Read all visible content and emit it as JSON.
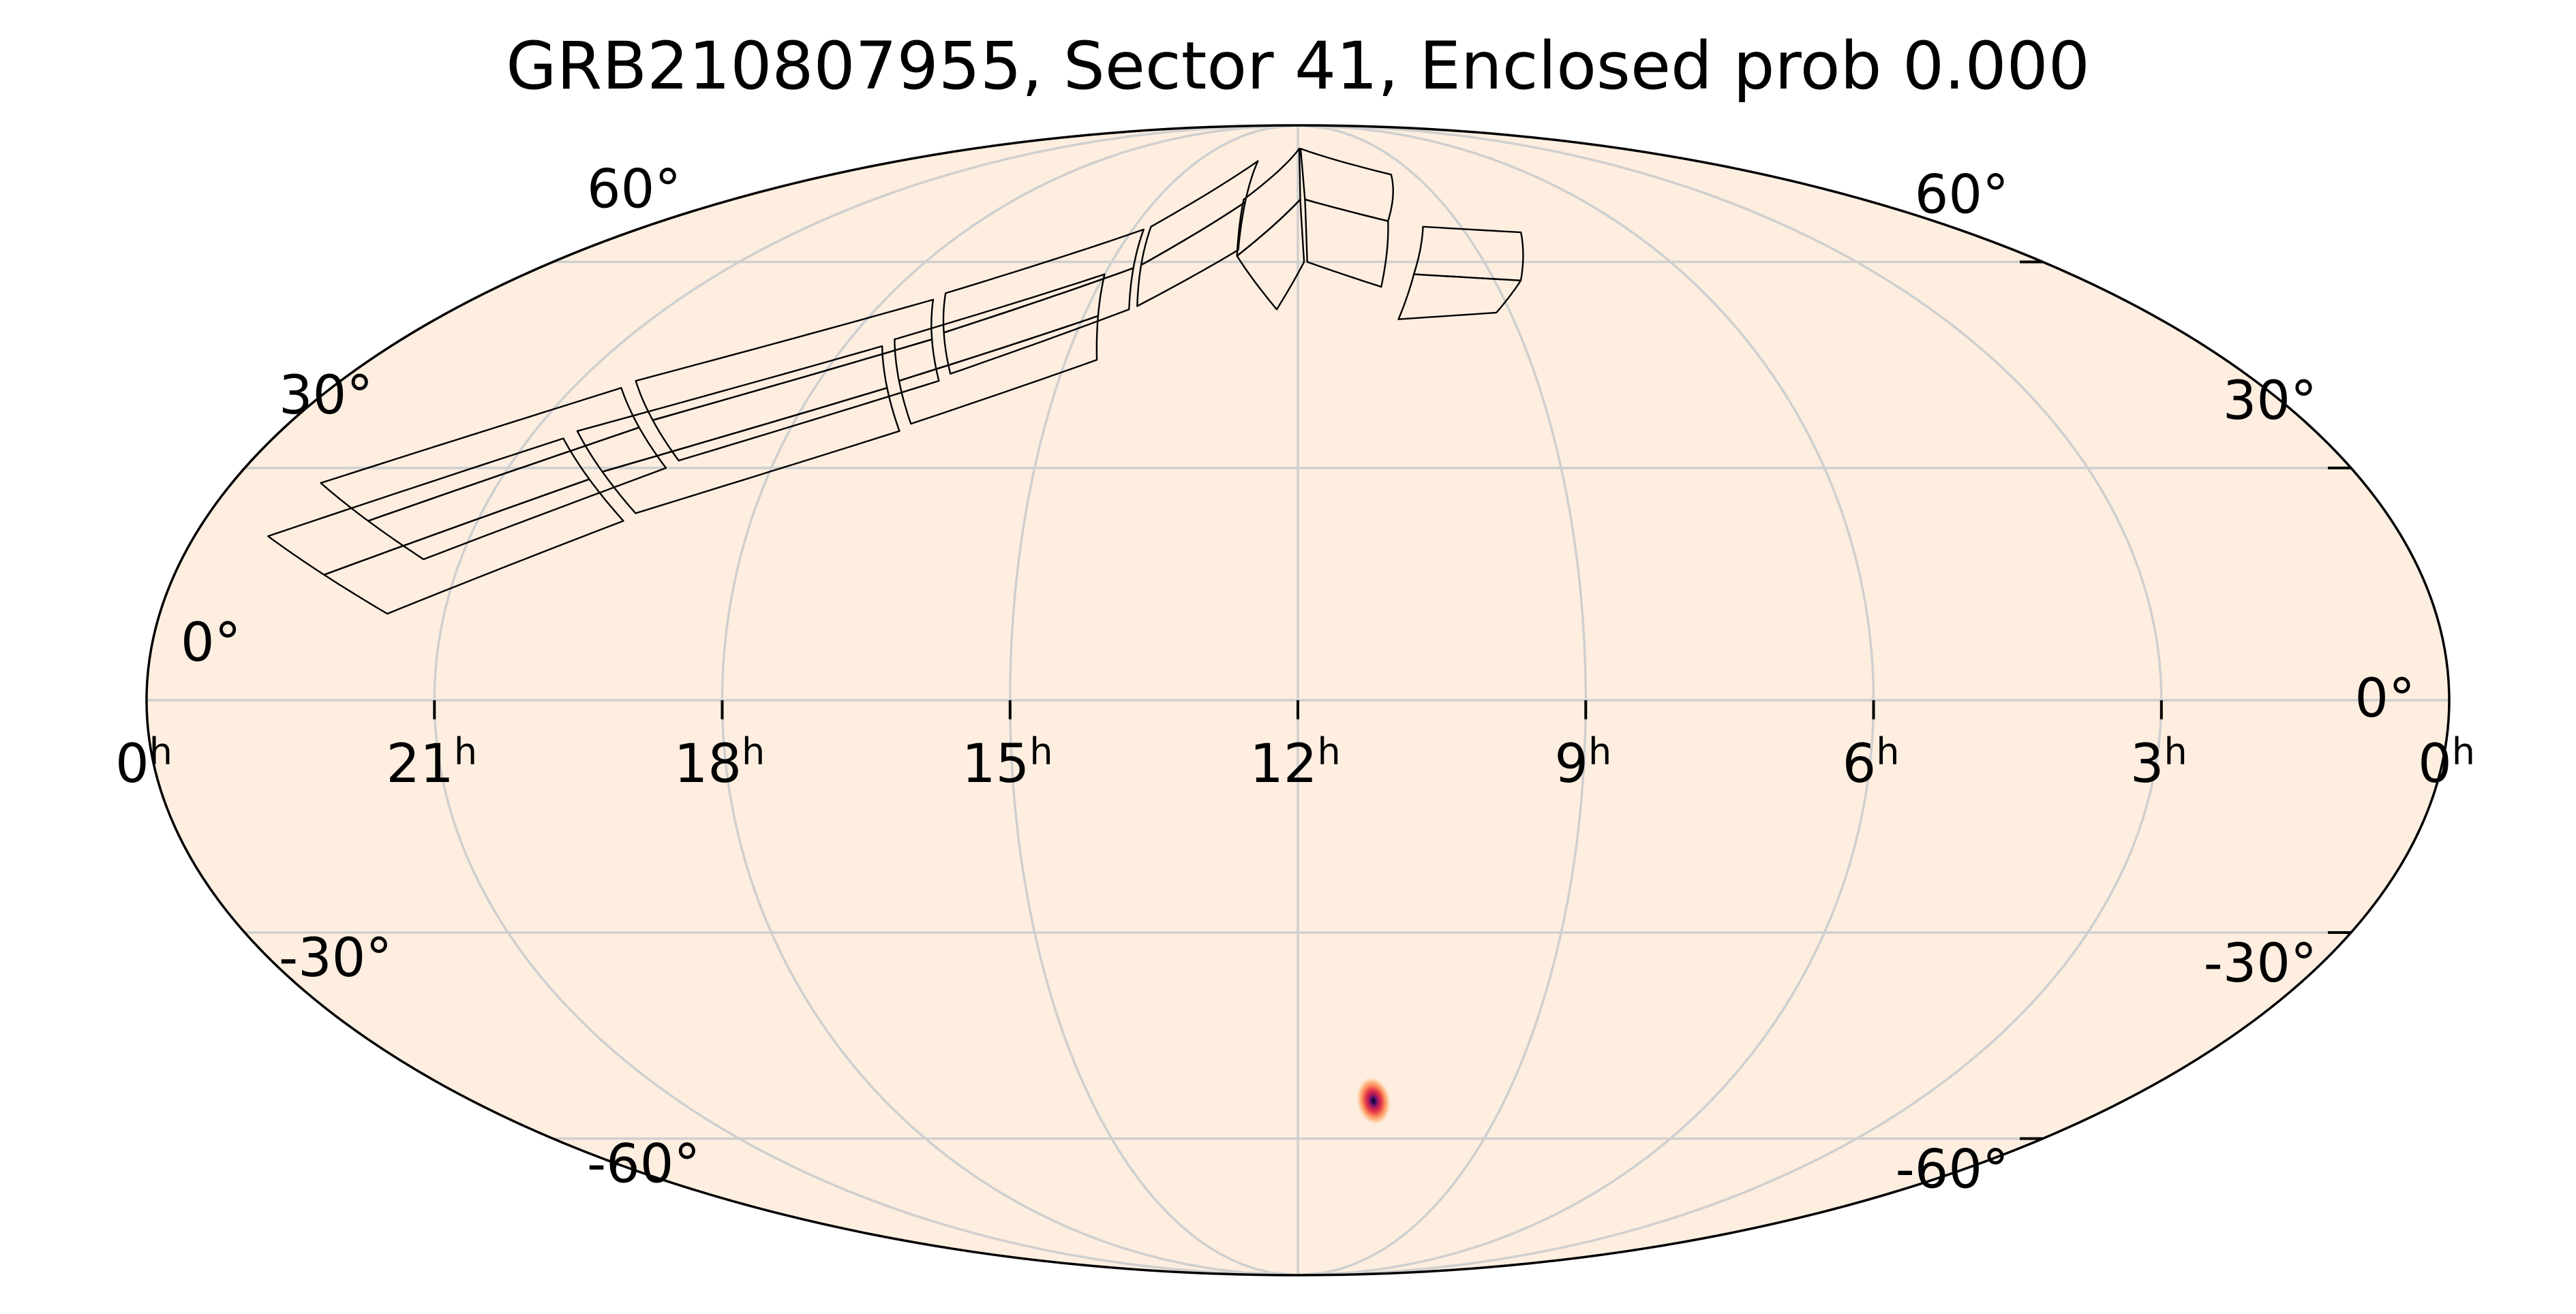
{
  "chart_data": {
    "type": "heatmap",
    "projection": "mollweide",
    "title": "GRB210807955, Sector 41, Enclosed prob 0.000",
    "ra_tick_labels": [
      {
        "h": 0,
        "label": "0",
        "sup": "h"
      },
      {
        "h": 21,
        "label": "21",
        "sup": "h"
      },
      {
        "h": 18,
        "label": "18",
        "sup": "h"
      },
      {
        "h": 15,
        "label": "15",
        "sup": "h"
      },
      {
        "h": 12,
        "label": "12",
        "sup": "h"
      },
      {
        "h": 9,
        "label": "9",
        "sup": "h"
      },
      {
        "h": 6,
        "label": "6",
        "sup": "h"
      },
      {
        "h": 3,
        "label": "3",
        "sup": "h"
      },
      {
        "h": 0,
        "label": "0",
        "sup": "h"
      }
    ],
    "dec_tick_labels": [
      {
        "dec": 60,
        "label": "60°"
      },
      {
        "dec": 30,
        "label": "30°"
      },
      {
        "dec": 0,
        "label": "0°"
      },
      {
        "dec": -30,
        "label": "-30°"
      },
      {
        "dec": -60,
        "label": "-60°"
      }
    ],
    "ra_range_hours": [
      0,
      24
    ],
    "ra_increases": "right-to-left",
    "dec_range_deg": [
      -90,
      90
    ],
    "grid": true,
    "gridline_ra_hours": [
      0,
      3,
      6,
      9,
      12,
      15,
      18,
      21
    ],
    "gridline_dec_deg": [
      -60,
      -30,
      0,
      30,
      60
    ],
    "colormap": "magma_r",
    "background_color": "#fdeee0",
    "probability_peak": {
      "ra_hours": 10.9,
      "dec_deg": -54,
      "width_deg": 3.5
    },
    "sector_footprint": {
      "sector": 41,
      "cameras": [
        {
          "ccds": [
            [
              [
                21.4,
                18
              ],
              [
                22.2,
                23
              ],
              [
                19.8,
                35.5
              ],
              [
                19.2,
                30
              ]
            ],
            [
              [
                22.2,
                23
              ],
              [
                23.0,
                28
              ],
              [
                20.4,
                41
              ],
              [
                19.8,
                35.5
              ]
            ],
            [
              [
                21.6,
                11
              ],
              [
                22.4,
                16
              ],
              [
                20.0,
                28.5
              ],
              [
                19.4,
                23
              ]
            ],
            [
              [
                22.4,
                16
              ],
              [
                23.2,
                21
              ],
              [
                20.6,
                34
              ],
              [
                20.0,
                28.5
              ]
            ]
          ]
        },
        {
          "ccds": [
            [
              [
                19.1,
                31
              ],
              [
                19.7,
                36.5
              ],
              [
                16.9,
                48
              ],
              [
                16.5,
                42
              ]
            ],
            [
              [
                19.7,
                36.5
              ],
              [
                20.3,
                42
              ],
              [
                17.3,
                54
              ],
              [
                16.9,
                48
              ]
            ],
            [
              [
                19.3,
                24
              ],
              [
                19.9,
                29.5
              ],
              [
                17.1,
                41
              ],
              [
                16.7,
                35
              ]
            ],
            [
              [
                19.9,
                29.5
              ],
              [
                20.5,
                35
              ],
              [
                17.5,
                47
              ],
              [
                17.1,
                41
              ]
            ]
          ]
        },
        {
          "ccds": [
            [
              [
                16.4,
                43
              ],
              [
                16.8,
                49
              ],
              [
                14.6,
                59
              ],
              [
                14.4,
                52.5
              ]
            ],
            [
              [
                16.8,
                49
              ],
              [
                17.2,
                55
              ],
              [
                14.8,
                65.5
              ],
              [
                14.6,
                59
              ]
            ],
            [
              [
                16.6,
                36
              ],
              [
                17.0,
                42
              ],
              [
                14.8,
                51.5
              ],
              [
                14.6,
                45
              ]
            ],
            [
              [
                17.0,
                42
              ],
              [
                17.4,
                48
              ],
              [
                15.0,
                58
              ],
              [
                14.8,
                51.5
              ]
            ]
          ]
        },
        {
          "ccds": [
            [
              [
                14.3,
                53
              ],
              [
                14.5,
                59.5
              ],
              [
                13.1,
                70.5
              ],
              [
                13.0,
                62
              ]
            ],
            [
              [
                14.5,
                59.5
              ],
              [
                14.7,
                66
              ],
              [
                13.2,
                79
              ],
              [
                13.1,
                70.5
              ]
            ],
            [
              [
                12.3,
                52.5
              ],
              [
                13.0,
                61
              ],
              [
                11.95,
                71
              ],
              [
                11.9,
                60
              ]
            ],
            [
              [
                13.0,
                61
              ],
              [
                13.15,
                71
              ],
              [
                11.95,
                82
              ],
              [
                11.95,
                71
              ]
            ]
          ]
        },
        {
          "ccds": [
            [
              [
                11.85,
                60
              ],
              [
                11.85,
                71
              ],
              [
                10.3,
                67
              ],
              [
                10.75,
                56
              ]
            ],
            [
              [
                11.85,
                71
              ],
              [
                11.9,
                82
              ],
              [
                9.6,
                76
              ],
              [
                10.3,
                67
              ]
            ],
            [
              [
                10.6,
                51
              ],
              [
                10.2,
                58
              ],
              [
                8.6,
                57
              ],
              [
                9.2,
                52
              ]
            ],
            [
              [
                10.2,
                58
              ],
              [
                9.7,
                66
              ],
              [
                8.0,
                65
              ],
              [
                8.6,
                57
              ]
            ]
          ]
        }
      ]
    }
  }
}
